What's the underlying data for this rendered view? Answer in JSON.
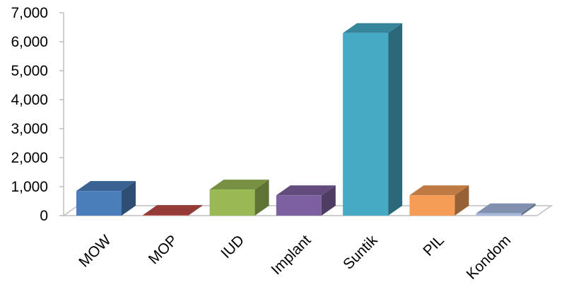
{
  "chart_data": {
    "type": "bar",
    "title": "",
    "xlabel": "",
    "ylabel": "",
    "categories": [
      "MOW",
      "MOP",
      "IUD",
      "Implant",
      "Suntik",
      "PIL",
      "Kondom"
    ],
    "values": [
      850,
      20,
      900,
      700,
      6300,
      700,
      80
    ],
    "ylim": [
      0,
      7000
    ],
    "yticks": [
      "0",
      "1,000",
      "2,000",
      "3,000",
      "4,000",
      "5,000",
      "6,000",
      "7,000"
    ],
    "grid": false,
    "three_d": true,
    "colors": {
      "MOW": "#4a7ebb",
      "MOP": "#be4b48",
      "IUD": "#98b954",
      "Implant": "#7d60a0",
      "Suntik": "#46aac5",
      "PIL": "#f59d56",
      "Kondom": "#a5b9e0"
    }
  }
}
